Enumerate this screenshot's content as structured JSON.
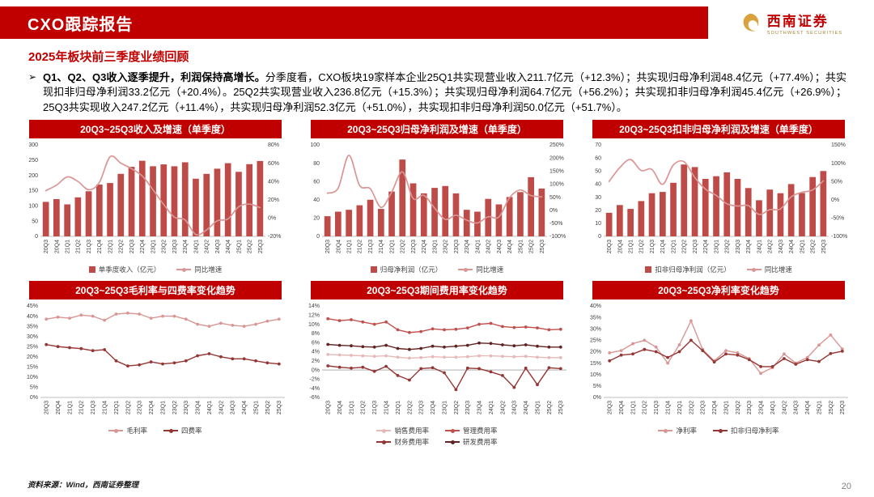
{
  "header": {
    "title": "CXO跟踪报告",
    "logo": {
      "name": "西南证券",
      "subname": "SOUTHWEST SECURITIES"
    }
  },
  "section": {
    "title": "2025年板块前三季度业绩回顾"
  },
  "commentary": {
    "bullet": "➢",
    "lead": "Q1、Q2、Q3收入逐季提升，利润保持高增长。",
    "body": "分季度看，CXO板块19家样本企业25Q1共实现营业收入211.7亿元（+12.3%）；共实现归母净利润48.4亿元（+77.4%）；共实现扣非归母净利润33.2亿元（+20.4%）。25Q2共实现营业收入236.8亿元（+15.3%）；共实现归母净利润64.7亿元（+56.2%）；共实现扣非归母净利润45.4亿元（+26.9%）；25Q3共实现收入247.2亿元（+11.4%），共实现归母净利润52.3亿元（+51.0%），共实现扣非归母净利润50.0亿元（+51.7%）。"
  },
  "footer": {
    "source": "资料来源：Wind，西南证券整理",
    "page_number": "20"
  },
  "colors": {
    "accent_red": "#c00000",
    "bar_red": "#be4b48",
    "line_light": "#d99694",
    "line_dark": "#943634"
  },
  "chart_data": [
    {
      "type": "combo",
      "title": "20Q3~25Q3收入及增速（单季度）",
      "categories": [
        "20Q3",
        "20Q4",
        "21Q1",
        "21Q2",
        "21Q3",
        "21Q4",
        "22Q1",
        "22Q2",
        "22Q3",
        "22Q4",
        "23Q1",
        "23Q2",
        "23Q3",
        "23Q4",
        "24Q1",
        "24Q2",
        "24Q3",
        "24Q4",
        "25Q1",
        "25Q2",
        "25Q3"
      ],
      "left_axis": {
        "min": 0,
        "max": 300,
        "ticks": [
          0,
          50,
          100,
          150,
          200,
          250,
          300
        ],
        "pct": false
      },
      "right_axis": {
        "min": -20,
        "max": 80,
        "ticks": [
          -20,
          0,
          20,
          40,
          60,
          80
        ],
        "pct": true
      },
      "series": [
        {
          "name": "单季度收入（亿元）",
          "type": "bar",
          "axis": "left",
          "color": "#be4b48",
          "values": [
            113,
            122,
            105,
            128,
            148,
            170,
            175,
            205,
            228,
            248,
            230,
            236,
            230,
            243,
            189,
            205,
            222,
            240,
            211.7,
            236.8,
            247.2
          ]
        },
        {
          "name": "同比增速",
          "type": "line",
          "axis": "right",
          "color": "#d99694",
          "smooth": true,
          "width": 1.7,
          "values": [
            30,
            36,
            45,
            40,
            31,
            39,
            67,
            60,
            54,
            46,
            31,
            15,
            1,
            -2,
            -18,
            -13,
            -3,
            -1,
            12.3,
            15.3,
            11.4
          ]
        }
      ]
    },
    {
      "type": "combo",
      "title": "20Q3~25Q3归母净利润及增速（单季度）",
      "categories": [
        "20Q3",
        "20Q4",
        "21Q1",
        "21Q2",
        "21Q3",
        "21Q4",
        "22Q1",
        "22Q2",
        "22Q3",
        "22Q4",
        "23Q1",
        "23Q2",
        "23Q3",
        "23Q4",
        "24Q1",
        "24Q2",
        "24Q3",
        "24Q4",
        "25Q1",
        "25Q2",
        "25Q3"
      ],
      "left_axis": {
        "min": 0,
        "max": 100,
        "ticks": [
          0,
          20,
          40,
          60,
          80,
          100
        ],
        "pct": false
      },
      "right_axis": {
        "min": -100,
        "max": 250,
        "ticks": [
          -100,
          -50,
          0,
          50,
          100,
          150,
          200,
          250
        ],
        "pct": true
      },
      "series": [
        {
          "name": "归母净利润（亿元）",
          "type": "bar",
          "axis": "left",
          "color": "#be4b48",
          "values": [
            22,
            27,
            29,
            34,
            40,
            30,
            49,
            84,
            58,
            47,
            53,
            55,
            47,
            29,
            27,
            41,
            35,
            43,
            48.4,
            64.7,
            52.3
          ]
        },
        {
          "name": "同比增速",
          "type": "line",
          "axis": "right",
          "color": "#d99694",
          "smooth": true,
          "width": 1.7,
          "values": [
            65,
            85,
            210,
            95,
            82,
            11,
            69,
            147,
            45,
            57,
            8,
            -35,
            -19,
            -38,
            -49,
            -25,
            -26,
            48,
            77.4,
            56.2,
            51.0
          ]
        }
      ]
    },
    {
      "type": "combo",
      "title": "20Q3~25Q3扣非归母净利润及增速（单季度）",
      "categories": [
        "20Q3",
        "20Q4",
        "21Q1",
        "21Q2",
        "21Q3",
        "21Q4",
        "22Q1",
        "22Q2",
        "22Q3",
        "22Q4",
        "23Q1",
        "23Q2",
        "23Q3",
        "23Q4",
        "24Q1",
        "24Q2",
        "24Q3",
        "24Q4",
        "25Q1",
        "25Q2",
        "25Q3"
      ],
      "left_axis": {
        "min": 0,
        "max": 70,
        "ticks": [
          0,
          10,
          20,
          30,
          40,
          50,
          60,
          70
        ],
        "pct": false
      },
      "right_axis": {
        "min": -100,
        "max": 150,
        "ticks": [
          -100,
          -50,
          0,
          50,
          100,
          150
        ],
        "pct": true
      },
      "series": [
        {
          "name": "扣非归母净利润（亿元）",
          "type": "bar",
          "axis": "left",
          "color": "#be4b48",
          "values": [
            18,
            24,
            21,
            27,
            33,
            34,
            41,
            55,
            53,
            44,
            46,
            49,
            44,
            37,
            27.6,
            35.8,
            33,
            40,
            33.2,
            45.4,
            50.0
          ]
        },
        {
          "name": "同比增速",
          "type": "line",
          "axis": "right",
          "color": "#d99694",
          "smooth": true,
          "width": 1.7,
          "values": [
            50,
            88,
            110,
            80,
            83,
            42,
            95,
            104,
            61,
            29,
            12,
            -11,
            -17,
            -16,
            -40,
            -27,
            -25,
            8,
            20.4,
            26.9,
            51.7
          ]
        }
      ]
    },
    {
      "type": "line",
      "title": "20Q3~25Q3毛利率与四费率变化趋势",
      "categories": [
        "20Q3",
        "20Q4",
        "21Q1",
        "21Q2",
        "21Q3",
        "21Q4",
        "22Q1",
        "22Q2",
        "22Q3",
        "22Q4",
        "23Q1",
        "23Q2",
        "23Q3",
        "23Q4",
        "24Q1",
        "24Q2",
        "24Q3",
        "24Q4",
        "25Q1",
        "25Q2",
        "25Q3"
      ],
      "left_axis": {
        "min": 0,
        "max": 45,
        "ticks": [
          0,
          5,
          10,
          15,
          20,
          25,
          30,
          35,
          40,
          45
        ],
        "pct": true
      },
      "series": [
        {
          "name": "毛利率",
          "type": "line",
          "axis": "left",
          "color": "#d99694",
          "markers": true,
          "values": [
            38.5,
            39.5,
            39,
            40.5,
            40,
            38,
            41,
            41.5,
            41,
            39,
            40,
            40,
            38.5,
            36,
            35,
            36.5,
            35.5,
            35,
            36,
            37.5,
            38.5
          ]
        },
        {
          "name": "四费率",
          "type": "line",
          "axis": "left",
          "color": "#943634",
          "markers": true,
          "values": [
            26,
            25,
            24.5,
            24,
            23,
            23.5,
            18,
            15.5,
            16,
            17.5,
            16.5,
            17,
            18,
            20.5,
            21.5,
            20,
            19,
            19,
            18,
            17,
            16.5
          ]
        }
      ]
    },
    {
      "type": "line",
      "title": "20Q3~25Q3期间费用率变化趋势",
      "categories": [
        "20Q3",
        "20Q4",
        "21Q1",
        "21Q2",
        "21Q3",
        "21Q4",
        "22Q1",
        "22Q2",
        "22Q3",
        "22Q4",
        "23Q1",
        "23Q2",
        "23Q3",
        "23Q4",
        "24Q1",
        "24Q2",
        "24Q3",
        "24Q4",
        "25Q1",
        "25Q2",
        "25Q3"
      ],
      "left_axis": {
        "min": -6,
        "max": 14,
        "ticks": [
          -6,
          -4,
          -2,
          0,
          2,
          4,
          6,
          8,
          10,
          12,
          14
        ],
        "pct": true
      },
      "series": [
        {
          "name": "销售费用率",
          "type": "line",
          "axis": "left",
          "color": "#e6b9b8",
          "markers": true,
          "values": [
            3.4,
            3.3,
            3.2,
            3.1,
            3.0,
            3.1,
            2.8,
            2.6,
            2.7,
            2.9,
            2.8,
            2.8,
            2.9,
            3.1,
            3.1,
            3.0,
            2.9,
            3.0,
            2.8,
            2.7,
            2.7
          ]
        },
        {
          "name": "管理费用率",
          "type": "line",
          "axis": "left",
          "color": "#c0504d",
          "markers": true,
          "values": [
            11.2,
            10.8,
            11.0,
            10.5,
            10.0,
            10.5,
            8.8,
            8.2,
            8.4,
            9.0,
            8.8,
            8.9,
            9.2,
            10.0,
            10.2,
            9.5,
            9.3,
            9.4,
            9.2,
            8.8,
            8.9
          ]
        },
        {
          "name": "财务费用率",
          "type": "line",
          "axis": "left",
          "color": "#943634",
          "markers": true,
          "values": [
            0.9,
            0.6,
            0.4,
            0.6,
            -0.3,
            0.8,
            -1.2,
            -2.2,
            0.3,
            0.5,
            -0.6,
            -4.3,
            0.4,
            0.3,
            -0.4,
            -1.2,
            -3.8,
            0.4,
            -3.2,
            0.5,
            0.3
          ]
        },
        {
          "name": "研发费用率",
          "type": "line",
          "axis": "left",
          "color": "#622423",
          "markers": true,
          "values": [
            5.6,
            5.4,
            5.3,
            5.1,
            5.0,
            5.4,
            4.7,
            4.5,
            4.7,
            5.2,
            5.0,
            5.2,
            5.4,
            5.9,
            5.8,
            5.5,
            5.3,
            5.5,
            5.2,
            5.0,
            5.0
          ]
        }
      ]
    },
    {
      "type": "line",
      "title": "20Q3~25Q3净利率变化趋势",
      "categories": [
        "20Q3",
        "20Q4",
        "21Q1",
        "21Q2",
        "21Q3",
        "21Q4",
        "22Q1",
        "22Q2",
        "22Q3",
        "22Q4",
        "23Q1",
        "23Q2",
        "23Q3",
        "23Q4",
        "24Q1",
        "24Q2",
        "24Q3",
        "24Q4",
        "25Q1",
        "25Q2",
        "25Q3"
      ],
      "left_axis": {
        "min": 0,
        "max": 40,
        "ticks": [
          0,
          5,
          10,
          15,
          20,
          25,
          30,
          35,
          40
        ],
        "pct": true
      },
      "series": [
        {
          "name": "净利率",
          "type": "line",
          "axis": "left",
          "color": "#d99694",
          "markers": true,
          "values": [
            19.5,
            20.5,
            23.5,
            25.0,
            22.0,
            15.0,
            23.0,
            33.5,
            21.0,
            16.0,
            20.5,
            19.5,
            17.0,
            10.5,
            13.0,
            19.0,
            15.0,
            17.5,
            22.9,
            27.3,
            21.2
          ]
        },
        {
          "name": "扣非归母净利率",
          "type": "line",
          "axis": "left",
          "color": "#943634",
          "markers": true,
          "values": [
            16.0,
            18.5,
            19.0,
            21.0,
            20.0,
            17.5,
            20.0,
            25.0,
            20.5,
            15.5,
            19.0,
            18.5,
            16.5,
            13.5,
            13.5,
            17.0,
            14.5,
            16.5,
            15.7,
            19.2,
            20.2
          ]
        }
      ]
    }
  ]
}
